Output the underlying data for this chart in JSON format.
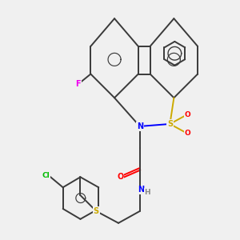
{
  "bg_color": "#f0f0f0",
  "bond_color": "#3a3a3a",
  "atom_colors": {
    "F": "#ee00ee",
    "Cl": "#00bb00",
    "N": "#0000ff",
    "O": "#ff0000",
    "S": "#ccaa00",
    "H": "#888888",
    "C": "#3a3a3a"
  },
  "bond_width": 1.4,
  "figsize": [
    3.0,
    3.0
  ],
  "dpi": 100
}
